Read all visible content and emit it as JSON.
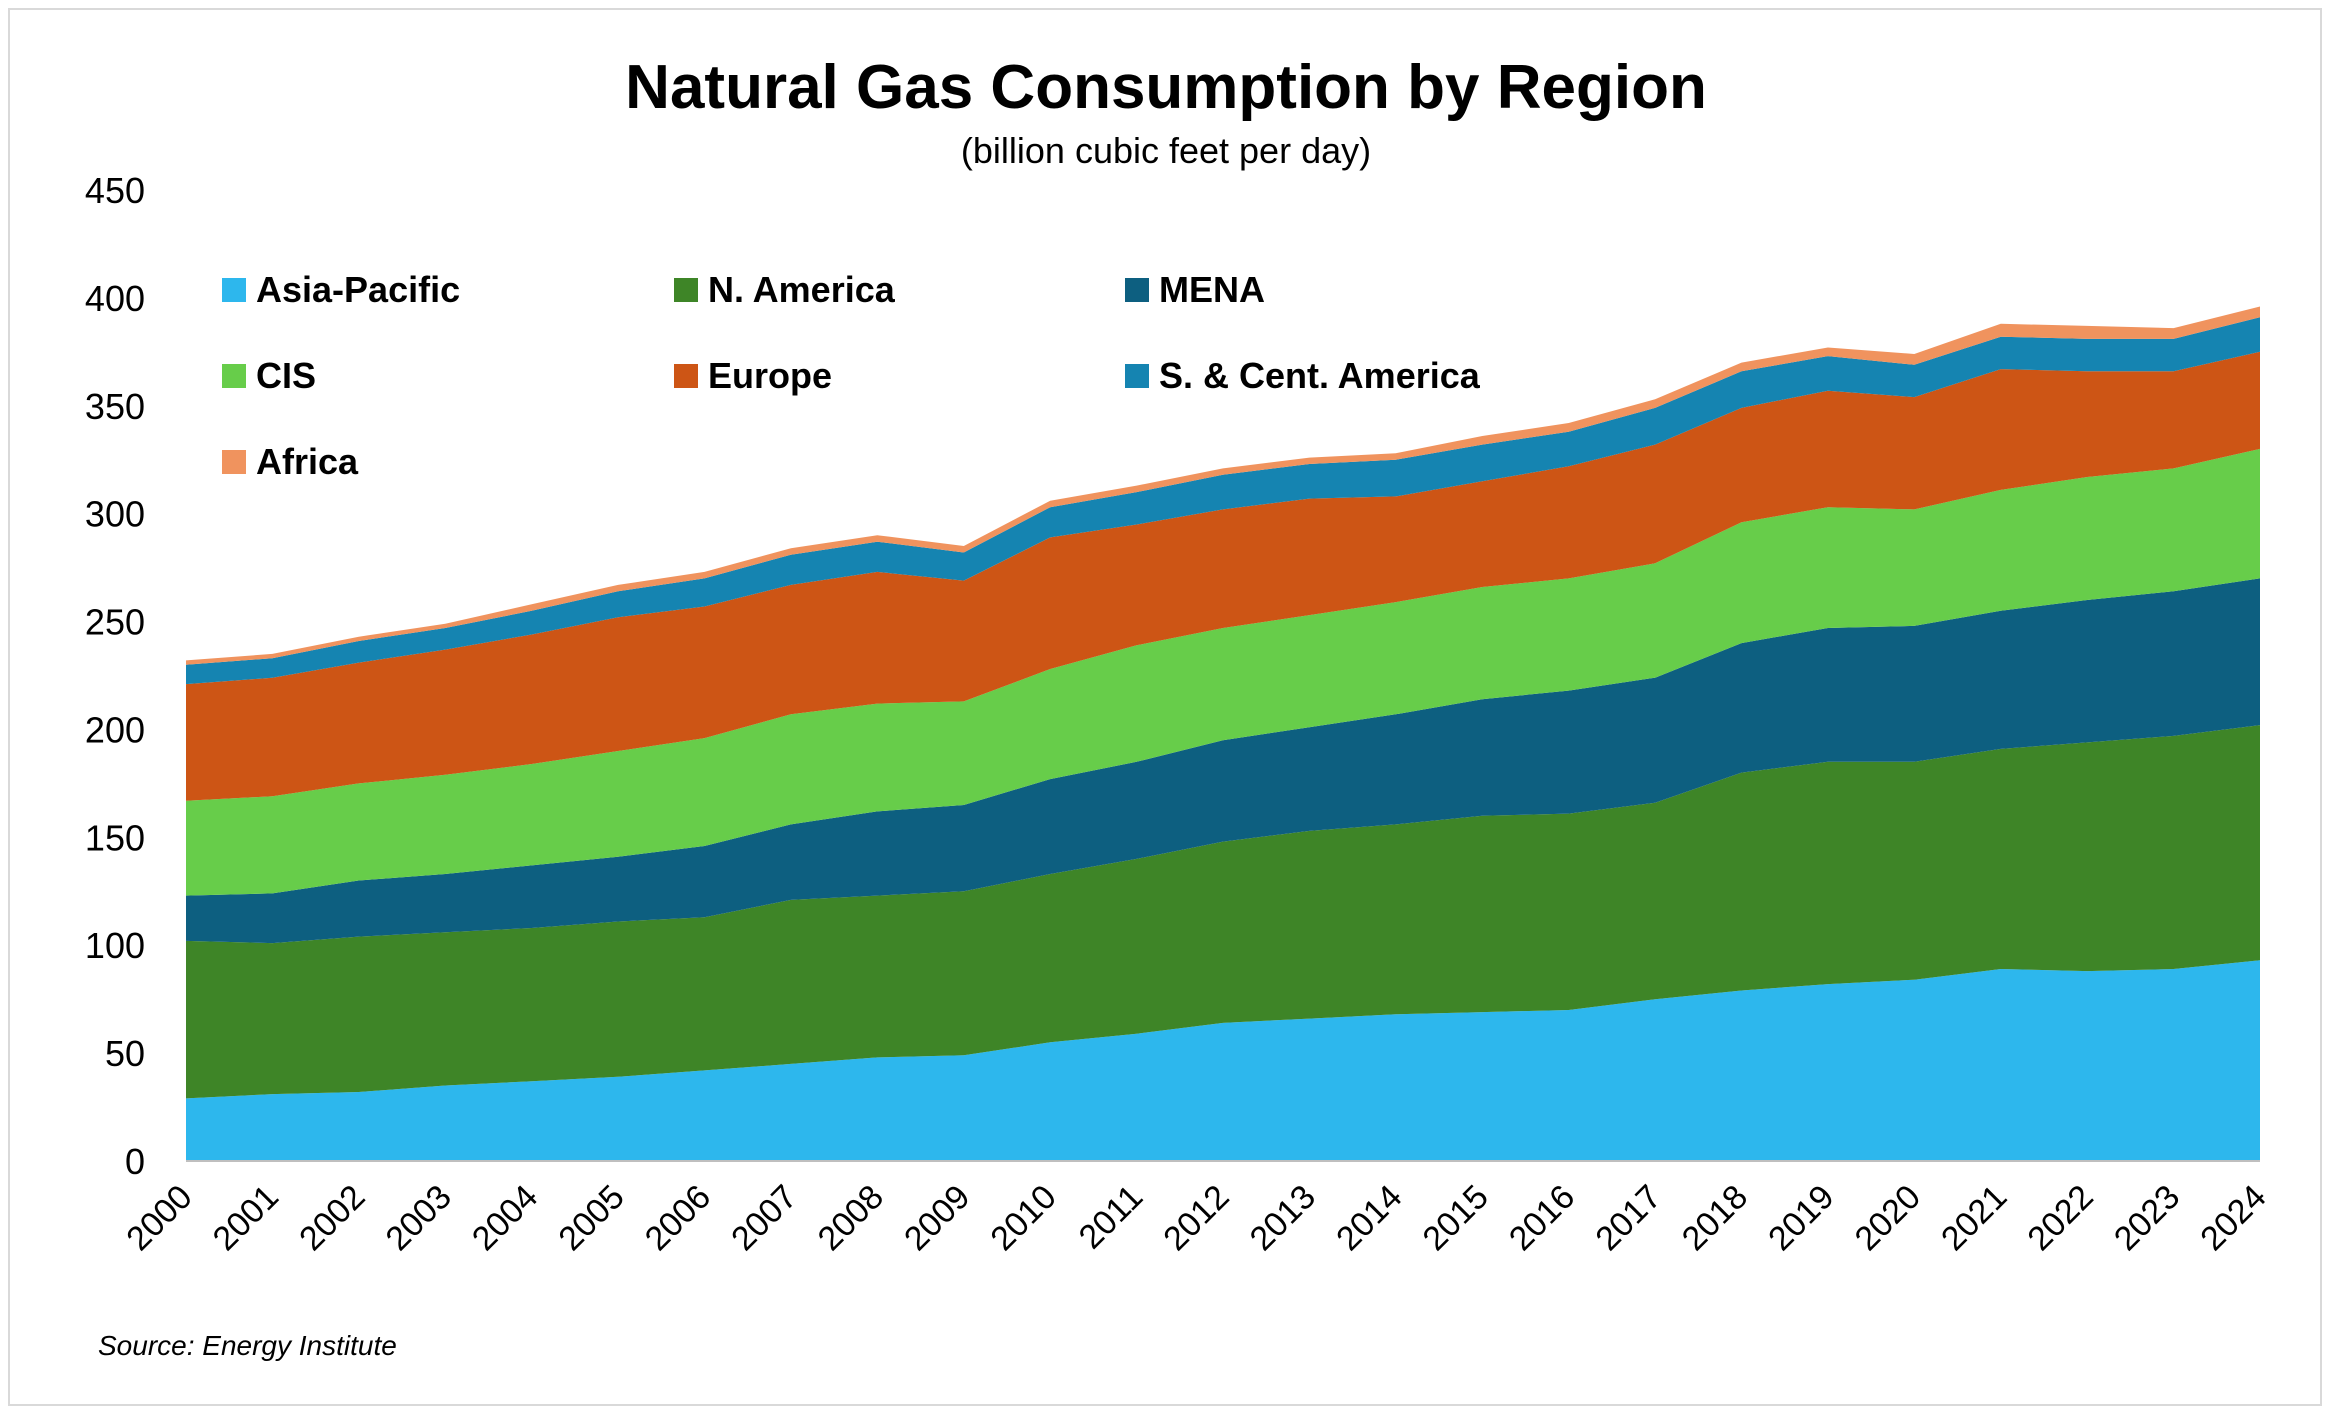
{
  "chart_data": {
    "type": "area",
    "stacked": true,
    "title": "Natural Gas Consumption by Region",
    "subtitle": "(billion cubic feet per day)",
    "xlabel": "",
    "ylabel": "",
    "ylim": [
      0,
      450
    ],
    "yticks": [
      0,
      50,
      100,
      150,
      200,
      250,
      300,
      350,
      400,
      450
    ],
    "categories": [
      "2000",
      "2001",
      "2002",
      "2003",
      "2004",
      "2005",
      "2006",
      "2007",
      "2008",
      "2009",
      "2010",
      "2011",
      "2012",
      "2013",
      "2014",
      "2015",
      "2016",
      "2017",
      "2018",
      "2019",
      "2020",
      "2021",
      "2022",
      "2023",
      "2024"
    ],
    "grid": false,
    "legend_position": "top-left",
    "series": [
      {
        "name": "Asia-Pacific",
        "color": "#2db7ed",
        "values": [
          29,
          31,
          32,
          35,
          37,
          39,
          42,
          45,
          48,
          49,
          55,
          59,
          64,
          66,
          68,
          69,
          70,
          75,
          79,
          82,
          84,
          89,
          88,
          89,
          93
        ]
      },
      {
        "name": "N. America",
        "color": "#3e8527",
        "values": [
          73,
          70,
          72,
          71,
          71,
          72,
          71,
          76,
          75,
          76,
          78,
          81,
          84,
          87,
          88,
          91,
          91,
          91,
          101,
          103,
          101,
          102,
          106,
          108,
          109
        ]
      },
      {
        "name": "MENA",
        "color": "#0d5f80",
        "values": [
          21,
          23,
          26,
          27,
          29,
          30,
          33,
          35,
          39,
          40,
          44,
          45,
          47,
          48,
          51,
          54,
          57,
          58,
          60,
          62,
          63,
          64,
          66,
          67,
          68
        ]
      },
      {
        "name": "CIS",
        "color": "#67cd4a",
        "values": [
          44,
          45,
          45,
          46,
          47,
          49,
          50,
          51,
          50,
          48,
          51,
          54,
          52,
          52,
          52,
          52,
          52,
          53,
          56,
          56,
          54,
          56,
          57,
          57,
          60
        ]
      },
      {
        "name": "Europe",
        "color": "#cd5515",
        "values": [
          54,
          55,
          56,
          58,
          60,
          62,
          61,
          60,
          61,
          56,
          61,
          56,
          55,
          54,
          49,
          49,
          52,
          55,
          53,
          54,
          52,
          56,
          49,
          45,
          45
        ]
      },
      {
        "name": "S. & Cent. America",
        "color": "#1584b1",
        "values": [
          9,
          9,
          10,
          10,
          11,
          12,
          13,
          14,
          14,
          13,
          14,
          15,
          16,
          16,
          17,
          17,
          16,
          17,
          17,
          16,
          15,
          15,
          15,
          15,
          16
        ]
      },
      {
        "name": "Africa",
        "color": "#f0935e",
        "values": [
          2,
          2,
          2,
          2,
          3,
          3,
          3,
          3,
          3,
          3,
          3,
          3,
          3,
          3,
          3,
          4,
          4,
          4,
          4,
          4,
          5,
          6,
          6,
          5,
          5
        ]
      }
    ],
    "source": "Source: Energy Institute"
  }
}
